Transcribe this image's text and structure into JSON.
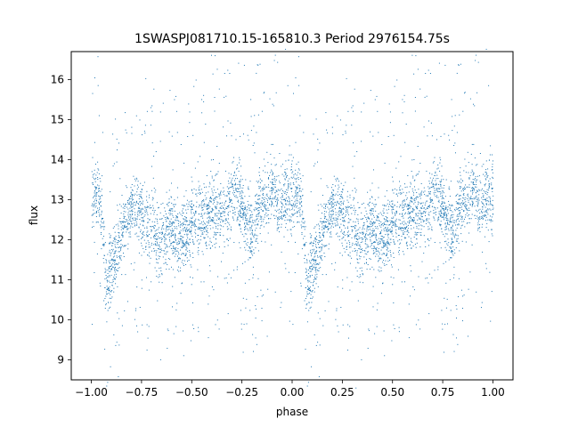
{
  "chart_data": {
    "type": "scatter",
    "title": "1SWASPJ081710.15-165810.3 Period 2976154.75s",
    "xlabel": "phase",
    "ylabel": "flux",
    "xlim": [
      -1.1,
      1.1
    ],
    "ylim": [
      8.5,
      16.7
    ],
    "x_ticks": [
      -1.0,
      -0.75,
      -0.5,
      -0.25,
      0.0,
      0.25,
      0.5,
      0.75,
      1.0
    ],
    "x_tick_labels": [
      "−1.00",
      "−0.75",
      "−0.50",
      "−0.25",
      "0.00",
      "0.25",
      "0.50",
      "0.75",
      "1.00"
    ],
    "y_ticks": [
      9,
      10,
      11,
      12,
      13,
      14,
      15,
      16
    ],
    "y_tick_labels": [
      "9",
      "10",
      "11",
      "12",
      "13",
      "14",
      "15",
      "16"
    ],
    "grid": false,
    "point_color": "#1f77b4",
    "series": [
      {
        "phase_flux_profile": [
          [
            0.0,
            13.0
          ],
          [
            0.03,
            13.3
          ],
          [
            0.05,
            12.6
          ],
          [
            0.07,
            11.0
          ],
          [
            0.1,
            11.3
          ],
          [
            0.13,
            11.8
          ],
          [
            0.17,
            12.5
          ],
          [
            0.2,
            12.7
          ],
          [
            0.23,
            12.8
          ],
          [
            0.26,
            12.5
          ],
          [
            0.3,
            12.3
          ],
          [
            0.33,
            12.0
          ],
          [
            0.37,
            12.2
          ],
          [
            0.4,
            12.3
          ],
          [
            0.44,
            12.0
          ],
          [
            0.47,
            12.2
          ],
          [
            0.5,
            12.4
          ],
          [
            0.53,
            12.5
          ],
          [
            0.57,
            12.6
          ],
          [
            0.6,
            12.8
          ],
          [
            0.63,
            12.7
          ],
          [
            0.67,
            12.6
          ],
          [
            0.7,
            13.3
          ],
          [
            0.73,
            13.0
          ],
          [
            0.77,
            12.5
          ],
          [
            0.8,
            12.0
          ],
          [
            0.83,
            12.8
          ],
          [
            0.87,
            13.0
          ],
          [
            0.9,
            13.3
          ],
          [
            0.93,
            12.8
          ],
          [
            0.97,
            13.1
          ],
          [
            1.0,
            13.0
          ]
        ]
      }
    ]
  }
}
